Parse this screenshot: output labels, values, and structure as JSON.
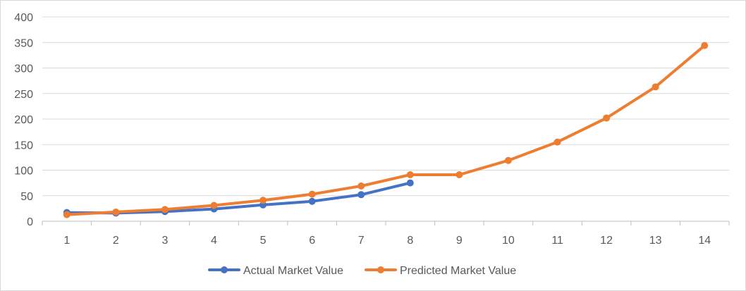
{
  "chart_data": {
    "type": "line",
    "title": "",
    "xlabel": "",
    "ylabel": "",
    "x": [
      1,
      2,
      3,
      4,
      5,
      6,
      7,
      8,
      9,
      10,
      11,
      12,
      13,
      14
    ],
    "x_tick_labels": [
      "1",
      "2",
      "3",
      "4",
      "5",
      "6",
      "7",
      "8",
      "9",
      "10",
      "11",
      "12",
      "13",
      "14"
    ],
    "ylim": [
      0,
      400
    ],
    "y_ticks": [
      0,
      50,
      100,
      150,
      200,
      250,
      300,
      350,
      400
    ],
    "y_tick_labels": [
      "0",
      "50",
      "100",
      "150",
      "200",
      "250",
      "300",
      "350",
      "400"
    ],
    "grid": "horizontal",
    "legend_position": "bottom",
    "series": [
      {
        "name": "Actual Market Value",
        "color": "#4472c4",
        "values": [
          17,
          16,
          19,
          24,
          32,
          39,
          52,
          75,
          null,
          null,
          null,
          null,
          null,
          null
        ]
      },
      {
        "name": "Predicted Market Value",
        "color": "#ed7d31",
        "values": [
          13,
          18,
          23,
          31,
          41,
          53,
          69,
          91,
          91,
          119,
          155,
          202,
          263,
          344
        ]
      }
    ]
  }
}
